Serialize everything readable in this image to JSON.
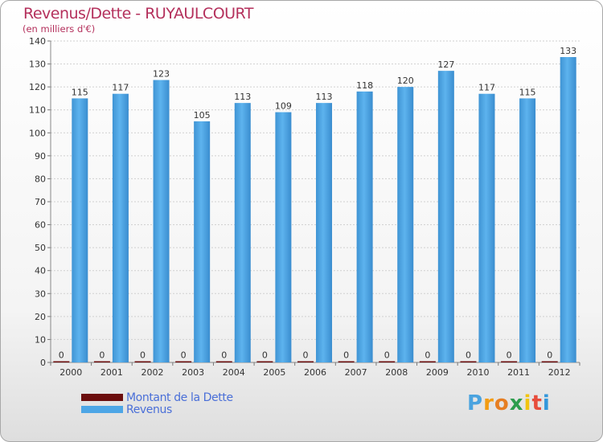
{
  "title": "Revenus/Dette - RUYAULCOURT",
  "subtitle": "(en milliers d'€)",
  "chart_data": {
    "type": "bar",
    "title": "Revenus/Dette - RUYAULCOURT",
    "ylabel": "(en milliers d'€)",
    "xlabel": "",
    "ylim": [
      0,
      140
    ],
    "ytick_step": 10,
    "grid": true,
    "categories": [
      "2000",
      "2001",
      "2002",
      "2003",
      "2004",
      "2005",
      "2006",
      "2007",
      "2008",
      "2009",
      "2010",
      "2011",
      "2012"
    ],
    "series": [
      {
        "name": "Montant de la Dette",
        "color": "#6b0d0d",
        "values": [
          0,
          0,
          0,
          0,
          0,
          0,
          0,
          0,
          0,
          0,
          0,
          0,
          0
        ]
      },
      {
        "name": "Revenus",
        "color": "#4da6e6",
        "values": [
          115,
          117,
          123,
          105,
          113,
          109,
          113,
          118,
          120,
          127,
          117,
          115,
          133
        ]
      }
    ]
  },
  "legend": {
    "items": [
      {
        "label": "Montant de la Dette",
        "color": "#6b0d0d"
      },
      {
        "label": "Revenus",
        "color": "#4da6e6"
      }
    ]
  },
  "brand": {
    "letters": [
      "P",
      "r",
      "o",
      "x",
      "i",
      "t",
      "i"
    ],
    "colors": [
      "#4aa3df",
      "#f39c12",
      "#e67e22",
      "#2d9d4d",
      "#f1c40f",
      "#e74c3c",
      "#3498db"
    ]
  }
}
